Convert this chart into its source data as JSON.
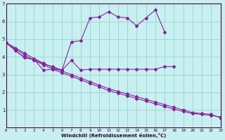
{
  "bg_color": "#c8f0f0",
  "grid_color": "#90cccc",
  "line_color": "#882299",
  "xlabel": "Windchill (Refroidissement éolien,°C)",
  "line1_x": [
    0,
    1,
    2,
    3,
    4,
    5,
    6,
    7,
    8,
    9,
    10,
    11,
    12,
    13,
    14,
    15,
    16,
    17,
    18
  ],
  "line1_y": [
    4.8,
    4.35,
    3.95,
    3.85,
    3.25,
    3.3,
    3.25,
    3.8,
    3.25,
    3.3,
    3.3,
    3.3,
    3.3,
    3.3,
    3.3,
    3.3,
    3.3,
    3.45,
    3.45
  ],
  "line2_x": [
    0,
    1,
    2,
    3,
    4,
    5,
    6,
    7,
    8,
    9,
    10,
    11,
    12,
    13,
    14,
    15,
    16,
    17
  ],
  "line2_y": [
    4.8,
    4.35,
    3.95,
    3.85,
    3.6,
    3.45,
    3.25,
    4.85,
    4.9,
    6.2,
    6.25,
    6.55,
    6.25,
    6.2,
    5.75,
    6.2,
    6.65,
    5.4
  ],
  "line3_x": [
    0,
    1,
    2,
    3,
    4,
    5,
    6,
    7,
    8,
    9,
    10,
    11,
    12,
    13,
    14,
    15,
    16,
    17,
    18,
    19,
    20,
    21,
    22,
    23
  ],
  "line3_y": [
    4.8,
    4.5,
    4.2,
    3.9,
    3.65,
    3.4,
    3.2,
    3.0,
    2.8,
    2.6,
    2.4,
    2.2,
    2.05,
    1.9,
    1.75,
    1.6,
    1.45,
    1.3,
    1.15,
    1.0,
    0.85,
    0.8,
    0.75,
    0.55
  ],
  "line4_x": [
    0,
    1,
    2,
    3,
    4,
    5,
    6,
    7,
    8,
    9,
    10,
    11,
    12,
    13,
    14,
    15,
    16,
    17,
    18,
    19,
    20,
    21,
    22,
    23
  ],
  "line4_y": [
    4.8,
    4.45,
    4.1,
    3.8,
    3.55,
    3.3,
    3.1,
    2.9,
    2.7,
    2.5,
    2.3,
    2.1,
    1.95,
    1.8,
    1.65,
    1.5,
    1.35,
    1.2,
    1.05,
    0.92,
    0.8,
    0.75,
    0.7,
    0.6
  ],
  "xlim": [
    0,
    23
  ],
  "ylim": [
    0,
    7
  ],
  "xtick_labels": [
    "0",
    "1",
    "2",
    "3",
    "4",
    "5",
    "6",
    "7",
    "8",
    "9",
    "10",
    "11",
    "12",
    "13",
    "14",
    "15",
    "16",
    "17",
    "18",
    "19",
    "20",
    "21",
    "22",
    "23"
  ],
  "ytick_labels": [
    "1",
    "2",
    "3",
    "4",
    "5",
    "6",
    "7"
  ],
  "yticks": [
    1,
    2,
    3,
    4,
    5,
    6,
    7
  ]
}
